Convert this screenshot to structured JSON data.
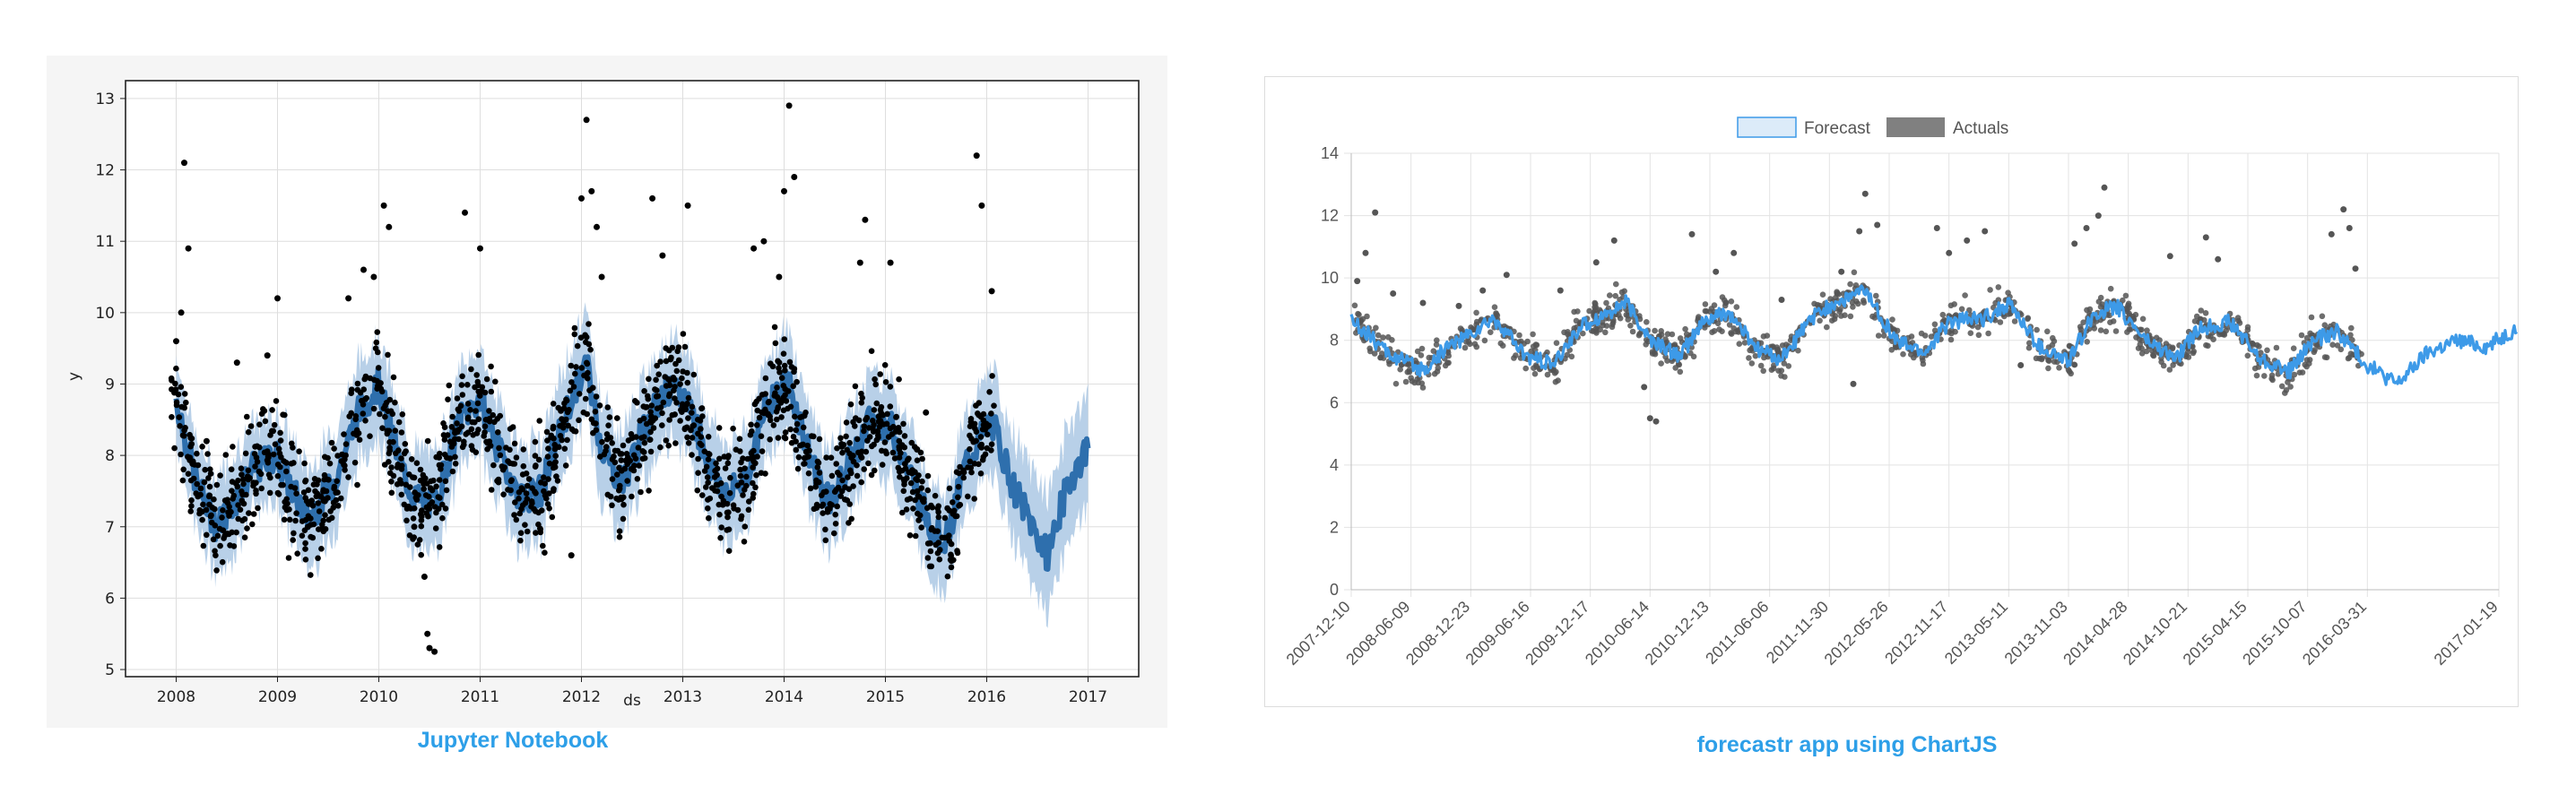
{
  "captions": {
    "left": "Jupyter Notebook",
    "right": "forecastr app using ChartJS"
  },
  "colors": {
    "left_band": "#b8d0e8",
    "left_line": "#2e6fad",
    "left_points": "#000000",
    "right_line": "#3d9ae8",
    "right_band_fill": "#dcebf9",
    "right_actuals": "#555555",
    "caption": "#2d9fe8"
  },
  "chart_data": [
    {
      "type": "line",
      "title": "",
      "xlabel": "ds",
      "ylabel": "y",
      "xlim": [
        2007.5,
        2017.5
      ],
      "ylim": [
        4.9,
        13.25
      ],
      "x_ticks": [
        "2008",
        "2009",
        "2010",
        "2011",
        "2012",
        "2013",
        "2014",
        "2015",
        "2016",
        "2017"
      ],
      "y_ticks": [
        "5",
        "6",
        "7",
        "8",
        "9",
        "10",
        "11",
        "12",
        "13"
      ],
      "grid": true,
      "series": [
        {
          "kind": "forecast-line-with-uncertainty-band",
          "x": [
            2008.0,
            2008.2,
            2008.4,
            2008.55,
            2008.75,
            2009.0,
            2009.15,
            2009.3,
            2009.55,
            2009.8,
            2010.0,
            2010.2,
            2010.35,
            2010.55,
            2010.8,
            2011.0,
            2011.2,
            2011.4,
            2011.6,
            2011.85,
            2012.05,
            2012.2,
            2012.4,
            2012.6,
            2012.8,
            2013.05,
            2013.25,
            2013.45,
            2013.65,
            2013.85,
            2014.05,
            2014.25,
            2014.45,
            2014.65,
            2014.85,
            2015.05,
            2015.25,
            2015.45,
            2015.6,
            2015.8,
            2016.05,
            2016.25,
            2016.45,
            2016.6,
            2016.8,
            2017.0
          ],
          "y": [
            8.8,
            7.6,
            7.0,
            7.3,
            7.8,
            8.0,
            7.5,
            7.1,
            7.6,
            8.6,
            9.0,
            7.9,
            7.4,
            7.3,
            8.5,
            8.8,
            8.0,
            7.4,
            7.5,
            8.6,
            9.3,
            8.1,
            7.6,
            8.3,
            8.9,
            8.8,
            7.9,
            7.4,
            7.8,
            8.8,
            9.0,
            8.0,
            7.3,
            7.9,
            8.5,
            8.4,
            7.7,
            7.0,
            6.8,
            7.9,
            8.5,
            7.6,
            7.0,
            6.6,
            7.6,
            8.1
          ],
          "lower": [
            8.2,
            7.0,
            6.3,
            6.6,
            7.2,
            7.4,
            6.8,
            6.4,
            6.9,
            7.9,
            8.3,
            7.2,
            6.7,
            6.6,
            7.8,
            8.1,
            7.3,
            6.7,
            6.8,
            7.9,
            8.6,
            7.4,
            6.9,
            7.6,
            8.2,
            8.1,
            7.2,
            6.7,
            7.1,
            8.1,
            8.3,
            7.3,
            6.6,
            7.2,
            7.8,
            7.7,
            7.0,
            6.3,
            6.1,
            7.2,
            7.8,
            6.9,
            6.2,
            5.8,
            6.8,
            7.3
          ],
          "upper": [
            9.4,
            8.2,
            7.7,
            8.0,
            8.4,
            8.6,
            8.2,
            7.8,
            8.3,
            9.3,
            9.7,
            8.6,
            8.1,
            8.0,
            9.2,
            9.5,
            8.7,
            8.1,
            8.2,
            9.3,
            10.0,
            8.8,
            8.3,
            9.0,
            9.6,
            9.5,
            8.6,
            8.1,
            8.5,
            9.5,
            9.7,
            8.7,
            8.0,
            8.6,
            9.2,
            9.1,
            8.4,
            7.7,
            7.5,
            8.6,
            9.2,
            8.3,
            7.8,
            7.4,
            8.4,
            8.9
          ]
        },
        {
          "kind": "actuals-points",
          "x": [
            2008.0,
            2008.05,
            2008.08,
            2008.12,
            2008.3,
            2008.6,
            2008.9,
            2009.0,
            2009.3,
            2009.7,
            2009.85,
            2009.95,
            2010.05,
            2010.1,
            2010.35,
            2010.45,
            2010.48,
            2010.5,
            2010.55,
            2010.85,
            2011.0,
            2011.9,
            2012.0,
            2012.05,
            2012.1,
            2012.15,
            2012.2,
            2012.7,
            2012.8,
            2013.05,
            2013.7,
            2013.8,
            2013.95,
            2014.0,
            2014.05,
            2014.1,
            2014.75,
            2014.8,
            2015.05,
            2015.4,
            2015.9,
            2015.95,
            2016.05
          ],
          "y": [
            9.6,
            10.0,
            12.1,
            10.9,
            8.2,
            9.3,
            9.4,
            10.2,
            7.0,
            10.2,
            10.6,
            10.5,
            11.5,
            11.2,
            7.0,
            6.3,
            5.5,
            5.3,
            5.25,
            11.4,
            10.9,
            6.6,
            11.6,
            12.7,
            11.7,
            11.2,
            10.5,
            11.6,
            10.8,
            11.5,
            10.9,
            11.0,
            10.5,
            11.7,
            12.9,
            11.9,
            10.7,
            11.3,
            10.7,
            8.6,
            12.2,
            11.5,
            10.3
          ]
        }
      ]
    },
    {
      "type": "line",
      "title": "",
      "legend": [
        "Forecast",
        "Actuals"
      ],
      "legend_position": "top",
      "ylim": [
        0,
        14
      ],
      "y_ticks": [
        "0",
        "2",
        "4",
        "6",
        "8",
        "10",
        "12",
        "14"
      ],
      "x_ticks": [
        "2007-12-10",
        "2008-06-09",
        "2008-12-23",
        "2009-06-16",
        "2009-12-17",
        "2010-06-14",
        "2010-12-13",
        "2011-06-06",
        "2011-11-30",
        "2012-05-26",
        "2012-11-17",
        "2013-05-11",
        "2013-11-03",
        "2014-04-28",
        "2014-10-21",
        "2015-04-15",
        "2015-10-07",
        "2016-03-31",
        "2017-01-19"
      ],
      "x_tick_positions": [
        0,
        0.5,
        1,
        1.5,
        2,
        2.5,
        3,
        3.5,
        4,
        4.5,
        5,
        5.5,
        6,
        6.5,
        7,
        7.5,
        8,
        8.5,
        9.6
      ],
      "grid": true,
      "series": [
        {
          "name": "Forecast",
          "x": [
            0,
            0.3,
            0.6,
            0.8,
            1.0,
            1.2,
            1.45,
            1.7,
            1.9,
            2.1,
            2.3,
            2.5,
            2.75,
            2.95,
            3.15,
            3.4,
            3.6,
            3.85,
            4.05,
            4.3,
            4.55,
            4.8,
            5.0,
            5.3,
            5.5,
            5.75,
            6.0,
            6.2,
            6.4,
            6.65,
            6.9,
            7.1,
            7.35,
            7.6,
            7.85,
            8.05,
            8.25,
            8.5,
            8.75,
            9.0,
            9.25,
            9.5,
            9.75
          ],
          "y": [
            8.7,
            7.6,
            7.0,
            7.8,
            8.2,
            8.7,
            7.5,
            7.2,
            8.4,
            8.8,
            9.2,
            8.0,
            7.5,
            8.6,
            8.9,
            7.7,
            7.4,
            8.7,
            9.2,
            9.6,
            8.0,
            7.6,
            8.6,
            8.7,
            9.2,
            7.8,
            7.3,
            8.8,
            9.1,
            8.0,
            7.4,
            8.4,
            8.6,
            7.4,
            7.0,
            8.0,
            8.3,
            7.2,
            6.6,
            7.6,
            8.0,
            7.8,
            8.4
          ]
        },
        {
          "name": "Actuals",
          "x": [
            0.05,
            0.12,
            0.2,
            0.35,
            0.6,
            0.9,
            1.1,
            1.3,
            1.75,
            2.05,
            2.2,
            2.45,
            2.5,
            2.55,
            2.85,
            3.05,
            3.2,
            3.6,
            4.1,
            4.2,
            4.25,
            4.3,
            4.4,
            4.9,
            5.0,
            5.15,
            5.3,
            5.6,
            6.05,
            6.15,
            6.25,
            6.3,
            6.85,
            7.15,
            7.25,
            8.2,
            8.3,
            8.35,
            8.4
          ],
          "y": [
            9.9,
            10.8,
            12.1,
            9.5,
            9.2,
            9.1,
            9.6,
            10.1,
            9.6,
            10.5,
            11.2,
            6.5,
            5.5,
            5.4,
            11.4,
            10.2,
            10.8,
            9.3,
            10.2,
            6.6,
            11.5,
            12.7,
            11.7,
            11.6,
            10.8,
            11.2,
            11.5,
            7.2,
            11.1,
            11.6,
            12.0,
            12.9,
            10.7,
            11.3,
            10.6,
            11.4,
            12.2,
            11.6,
            10.3
          ]
        }
      ]
    }
  ]
}
